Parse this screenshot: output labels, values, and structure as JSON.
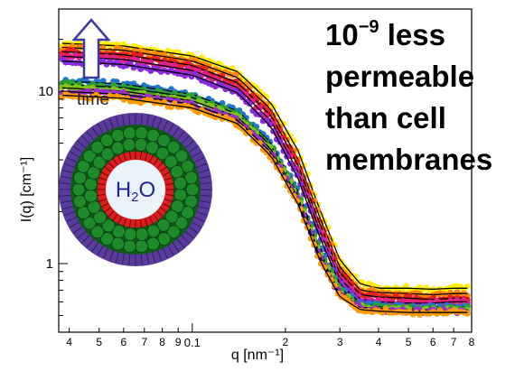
{
  "chart_data": {
    "type": "scatter",
    "title": "",
    "xlabel": "q [nm⁻¹]",
    "ylabel": "I(q) [cm⁻¹]",
    "x_scale": "log",
    "y_scale": "log",
    "xlim": [
      0.037,
      0.8
    ],
    "ylim": [
      0.4,
      30
    ],
    "x_ticks_major": [
      {
        "value": 0.1,
        "label": "0.1"
      }
    ],
    "x_ticks_minor": [
      {
        "value": 0.04,
        "label": "4"
      },
      {
        "value": 0.05,
        "label": "5"
      },
      {
        "value": 0.06,
        "label": "6"
      },
      {
        "value": 0.07,
        "label": "7"
      },
      {
        "value": 0.08,
        "label": "8"
      },
      {
        "value": 0.09,
        "label": "9"
      },
      {
        "value": 0.2,
        "label": "2"
      },
      {
        "value": 0.3,
        "label": "3"
      },
      {
        "value": 0.4,
        "label": "4"
      },
      {
        "value": 0.5,
        "label": "5"
      },
      {
        "value": 0.6,
        "label": "6"
      },
      {
        "value": 0.7,
        "label": "7"
      },
      {
        "value": 0.8,
        "label": "8"
      }
    ],
    "y_ticks_major": [
      {
        "value": 1,
        "label": "1"
      },
      {
        "value": 10,
        "label": "10"
      }
    ],
    "grid": false,
    "legend": "none",
    "fit_line_color": "#000000",
    "series": [
      {
        "color": "#ffee00",
        "values": [
          [
            0.037,
            19.0
          ],
          [
            0.06,
            18.3
          ],
          [
            0.1,
            16.0
          ],
          [
            0.14,
            13.0
          ],
          [
            0.18,
            8.5
          ],
          [
            0.22,
            4.5
          ],
          [
            0.26,
            2.0
          ],
          [
            0.3,
            1.05
          ],
          [
            0.35,
            0.76
          ],
          [
            0.4,
            0.72
          ],
          [
            0.5,
            0.72
          ],
          [
            0.6,
            0.71
          ],
          [
            0.7,
            0.72
          ],
          [
            0.77,
            0.72
          ]
        ]
      },
      {
        "color": "#ff8800",
        "values": [
          [
            0.037,
            18.0
          ],
          [
            0.06,
            17.3
          ],
          [
            0.1,
            15.0
          ],
          [
            0.14,
            12.0
          ],
          [
            0.18,
            7.8
          ],
          [
            0.22,
            4.0
          ],
          [
            0.26,
            1.8
          ],
          [
            0.3,
            0.95
          ],
          [
            0.35,
            0.7
          ],
          [
            0.4,
            0.68
          ],
          [
            0.5,
            0.67
          ],
          [
            0.6,
            0.66
          ],
          [
            0.7,
            0.67
          ],
          [
            0.77,
            0.67
          ]
        ]
      },
      {
        "color": "#e8211e",
        "values": [
          [
            0.037,
            17.0
          ],
          [
            0.06,
            16.3
          ],
          [
            0.1,
            14.1
          ],
          [
            0.14,
            11.2
          ],
          [
            0.18,
            7.2
          ],
          [
            0.22,
            3.7
          ],
          [
            0.26,
            1.65
          ],
          [
            0.3,
            0.88
          ],
          [
            0.35,
            0.66
          ],
          [
            0.4,
            0.64
          ],
          [
            0.5,
            0.63
          ],
          [
            0.6,
            0.62
          ],
          [
            0.7,
            0.63
          ],
          [
            0.77,
            0.63
          ]
        ]
      },
      {
        "color": "#e0218a",
        "values": [
          [
            0.037,
            16.0
          ],
          [
            0.06,
            15.3
          ],
          [
            0.1,
            13.2
          ],
          [
            0.14,
            10.5
          ],
          [
            0.18,
            6.7
          ],
          [
            0.22,
            3.4
          ],
          [
            0.26,
            1.5
          ],
          [
            0.3,
            0.82
          ],
          [
            0.35,
            0.62
          ],
          [
            0.4,
            0.6
          ],
          [
            0.5,
            0.59
          ],
          [
            0.6,
            0.59
          ],
          [
            0.7,
            0.6
          ],
          [
            0.77,
            0.6
          ]
        ]
      },
      {
        "color": "#8a2be2",
        "values": [
          [
            0.037,
            15.0
          ],
          [
            0.06,
            14.3
          ],
          [
            0.1,
            12.4
          ],
          [
            0.14,
            9.8
          ],
          [
            0.18,
            6.2
          ],
          [
            0.22,
            3.1
          ],
          [
            0.26,
            1.38
          ],
          [
            0.3,
            0.76
          ],
          [
            0.35,
            0.59
          ],
          [
            0.4,
            0.57
          ],
          [
            0.5,
            0.56
          ],
          [
            0.6,
            0.56
          ],
          [
            0.7,
            0.57
          ],
          [
            0.77,
            0.57
          ]
        ]
      },
      {
        "color": "#1f77d0",
        "values": [
          [
            0.037,
            11.5
          ],
          [
            0.06,
            11.0
          ],
          [
            0.1,
            9.6
          ],
          [
            0.14,
            7.7
          ],
          [
            0.18,
            5.0
          ],
          [
            0.22,
            2.6
          ],
          [
            0.26,
            1.2
          ],
          [
            0.3,
            0.72
          ],
          [
            0.35,
            0.58
          ],
          [
            0.4,
            0.57
          ],
          [
            0.5,
            0.56
          ],
          [
            0.6,
            0.56
          ],
          [
            0.7,
            0.56
          ],
          [
            0.77,
            0.56
          ]
        ]
      },
      {
        "color": "#2ca02c",
        "values": [
          [
            0.037,
            11.0
          ],
          [
            0.06,
            10.5
          ],
          [
            0.1,
            9.2
          ],
          [
            0.14,
            7.4
          ],
          [
            0.18,
            4.8
          ],
          [
            0.22,
            2.5
          ],
          [
            0.26,
            1.15
          ],
          [
            0.3,
            0.7
          ],
          [
            0.35,
            0.57
          ],
          [
            0.4,
            0.56
          ],
          [
            0.5,
            0.55
          ],
          [
            0.6,
            0.55
          ],
          [
            0.7,
            0.55
          ],
          [
            0.77,
            0.55
          ]
        ]
      },
      {
        "color": "#7fc31c",
        "values": [
          [
            0.037,
            10.5
          ],
          [
            0.06,
            10.0
          ],
          [
            0.1,
            8.8
          ],
          [
            0.14,
            7.1
          ],
          [
            0.18,
            4.6
          ],
          [
            0.22,
            2.4
          ],
          [
            0.26,
            1.1
          ],
          [
            0.3,
            0.68
          ],
          [
            0.35,
            0.56
          ],
          [
            0.4,
            0.55
          ],
          [
            0.5,
            0.54
          ],
          [
            0.6,
            0.54
          ],
          [
            0.7,
            0.54
          ],
          [
            0.77,
            0.54
          ]
        ]
      },
      {
        "color": "#9b30c8",
        "values": [
          [
            0.037,
            10.0
          ],
          [
            0.06,
            9.6
          ],
          [
            0.1,
            8.4
          ],
          [
            0.14,
            6.8
          ],
          [
            0.18,
            4.4
          ],
          [
            0.22,
            2.3
          ],
          [
            0.26,
            1.06
          ],
          [
            0.3,
            0.66
          ],
          [
            0.35,
            0.55
          ],
          [
            0.4,
            0.54
          ],
          [
            0.5,
            0.53
          ],
          [
            0.6,
            0.53
          ],
          [
            0.7,
            0.53
          ],
          [
            0.77,
            0.53
          ]
        ]
      },
      {
        "color": "#ff9a00",
        "values": [
          [
            0.037,
            9.5
          ],
          [
            0.06,
            9.1
          ],
          [
            0.1,
            8.0
          ],
          [
            0.14,
            6.5
          ],
          [
            0.18,
            4.2
          ],
          [
            0.22,
            2.2
          ],
          [
            0.26,
            1.02
          ],
          [
            0.3,
            0.64
          ],
          [
            0.35,
            0.54
          ],
          [
            0.4,
            0.53
          ],
          [
            0.5,
            0.52
          ],
          [
            0.6,
            0.52
          ],
          [
            0.7,
            0.52
          ],
          [
            0.77,
            0.52
          ]
        ]
      }
    ],
    "annotations": {
      "headline": [
        "10",
        "−9",
        " less",
        "permeable",
        "than cell",
        "membranes"
      ],
      "arrow_label": "time",
      "inset_label_main": "H",
      "inset_label_sub": "2",
      "inset_label_end": "O"
    },
    "colors": {
      "shell": "#5a3a9a",
      "spheres": "#1f8a2a",
      "core_ring": "#d81e1e",
      "core": "#e9f3fb",
      "inset_text": "#23239a",
      "arrow": "#3a3aa0"
    }
  }
}
